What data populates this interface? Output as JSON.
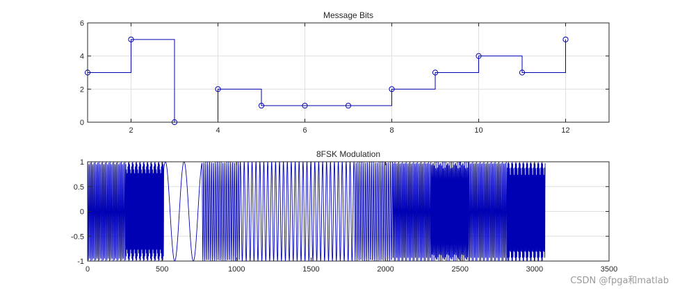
{
  "watermark": "CSDN @fpga和matlab",
  "colors": {
    "series": "#0000b4",
    "grid": "#dfdfdf",
    "axis": "#262626"
  },
  "chart_data": [
    {
      "type": "line",
      "style": "stairs-with-markers",
      "title": "Message Bits",
      "xlabel": "",
      "ylabel": "",
      "xlim": [
        1,
        13
      ],
      "ylim": [
        0,
        6
      ],
      "xticks": [
        2,
        4,
        6,
        8,
        10,
        12
      ],
      "yticks": [
        0,
        2,
        4,
        6
      ],
      "grid": true,
      "marker": "circle",
      "x": [
        1,
        2,
        3,
        4,
        5,
        6,
        7,
        8,
        9,
        10,
        11,
        12
      ],
      "values": [
        3,
        5,
        0,
        2,
        1,
        1,
        1,
        2,
        3,
        4,
        3,
        5
      ]
    },
    {
      "type": "line",
      "style": "oscillating-signal",
      "title": "8FSK Modulation",
      "xlabel": "",
      "ylabel": "",
      "xlim": [
        0,
        3500
      ],
      "ylim": [
        -1,
        1
      ],
      "xticks": [
        0,
        500,
        1000,
        1500,
        2000,
        2500,
        3000,
        3500
      ],
      "yticks": [
        -1,
        -0.5,
        0,
        0.5,
        1
      ],
      "grid": true,
      "samples": 3072,
      "samples_per_symbol": 256,
      "symbols": [
        3,
        5,
        0,
        2,
        1,
        1,
        1,
        2,
        3,
        4,
        3,
        5
      ],
      "amplitude": 1
    }
  ]
}
